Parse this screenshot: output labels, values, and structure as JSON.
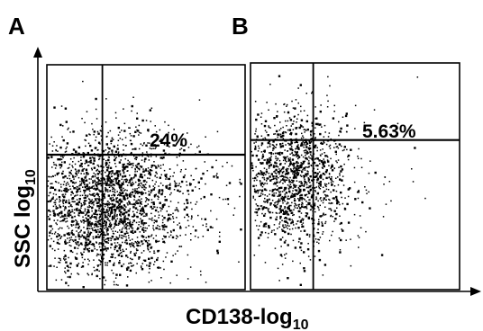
{
  "chart_data": [
    {
      "type": "scatter",
      "panel_label": "A",
      "xlabel": "CD138-log",
      "xlabel_subscript": "10",
      "ylabel": "SSC log",
      "ylabel_subscript": "10",
      "gate_annotation": "24%",
      "gate_x": 0.28,
      "gate_y": 0.6,
      "cluster_center": [
        0.29,
        0.38
      ],
      "cluster_spread": [
        0.2,
        0.16
      ],
      "point_count": 2600,
      "xlim": [
        0,
        1
      ],
      "ylim": [
        0,
        1
      ],
      "grid": false
    },
    {
      "type": "scatter",
      "panel_label": "B",
      "xlabel": "CD138-log",
      "xlabel_subscript": "10",
      "ylabel": "SSC log",
      "ylabel_subscript": "10",
      "gate_annotation": "5.63%",
      "gate_x": 0.3,
      "gate_y": 0.66,
      "cluster_center": [
        0.2,
        0.49
      ],
      "cluster_spread": [
        0.13,
        0.15
      ],
      "point_count": 1500,
      "xlim": [
        0,
        1
      ],
      "ylim": [
        0,
        1
      ],
      "grid": false
    }
  ],
  "colors": {
    "ink": "#000000",
    "background": "#ffffff"
  }
}
